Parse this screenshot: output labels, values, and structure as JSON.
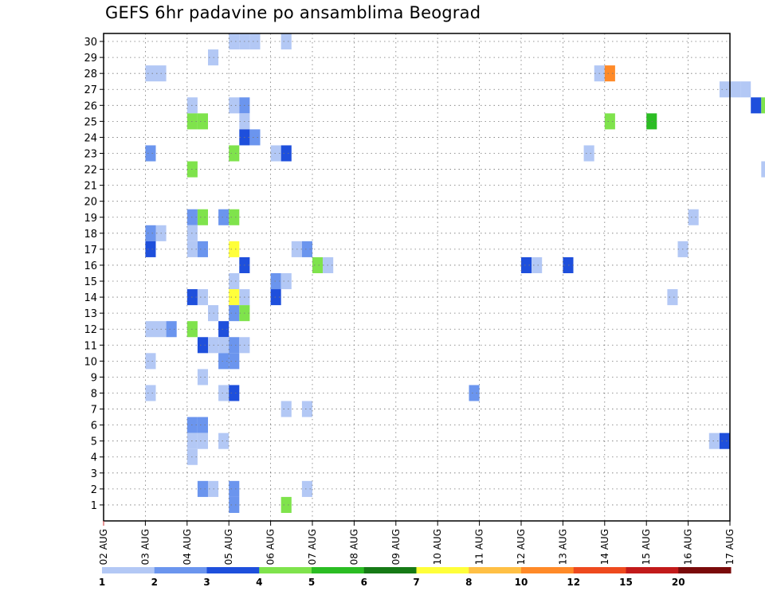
{
  "chart_data": {
    "type": "heatmap",
    "title": "GEFS 6hr padavine po ansamblima Beograd",
    "xlabel": "",
    "ylabel": "",
    "x_start": "02 AUG",
    "x_step_hours": 6,
    "x_tick_labels": [
      "02 AUG",
      "03 AUG",
      "04 AUG",
      "05 AUG",
      "06 AUG",
      "07 AUG",
      "08 AUG",
      "09 AUG",
      "10 AUG",
      "11 AUG",
      "12 AUG",
      "13 AUG",
      "14 AUG",
      "15 AUG",
      "16 AUG",
      "17 AUG"
    ],
    "y_range": [
      1,
      30
    ],
    "y_tick_labels": [
      "1",
      "2",
      "3",
      "4",
      "5",
      "6",
      "7",
      "8",
      "9",
      "10",
      "11",
      "12",
      "13",
      "14",
      "15",
      "16",
      "17",
      "18",
      "19",
      "20",
      "21",
      "22",
      "23",
      "24",
      "25",
      "26",
      "27",
      "28",
      "29",
      "30"
    ],
    "grid": true,
    "colorbar": {
      "position": "bottom",
      "labels": [
        "1",
        "2",
        "3",
        "4",
        "5",
        "6",
        "7",
        "8",
        "10",
        "12",
        "15",
        "20"
      ],
      "colors": [
        "#b3c8f5",
        "#6b95ee",
        "#1e4fdc",
        "#7fe34c",
        "#2bbd23",
        "#167a16",
        "#ffff3a",
        "#ffc045",
        "#ff8a28",
        "#ee4a1e",
        "#c21a1a",
        "#7a0a0a"
      ]
    },
    "cells": [
      {
        "member": 30,
        "time": "05 AUG 00Z",
        "value": 1.5
      },
      {
        "member": 30,
        "time": "05 AUG 06Z",
        "value": 1.5
      },
      {
        "member": 30,
        "time": "05 AUG 12Z",
        "value": 1.5
      },
      {
        "member": 30,
        "time": "06 AUG 06Z",
        "value": 1.5
      },
      {
        "member": 29,
        "time": "04 AUG 12Z",
        "value": 1.5
      },
      {
        "member": 28,
        "time": "03 AUG 00Z",
        "value": 1.5
      },
      {
        "member": 28,
        "time": "03 AUG 06Z",
        "value": 1.5
      },
      {
        "member": 28,
        "time": "13 AUG 18Z",
        "value": 1.5
      },
      {
        "member": 28,
        "time": "14 AUG 00Z",
        "value": 10
      },
      {
        "member": 27,
        "time": "16 AUG 18Z",
        "value": 1.5
      },
      {
        "member": 27,
        "time": "17 AUG 00Z",
        "value": 1.5
      },
      {
        "member": 27,
        "time": "17 AUG 06Z",
        "value": 1.5
      },
      {
        "member": 26,
        "time": "04 AUG 00Z",
        "value": 1.5
      },
      {
        "member": 26,
        "time": "05 AUG 00Z",
        "value": 1.5
      },
      {
        "member": 26,
        "time": "05 AUG 06Z",
        "value": 2.5
      },
      {
        "member": 26,
        "time": "17 AUG 12Z",
        "value": 3.5
      },
      {
        "member": 26,
        "time": "17 AUG 18Z",
        "value": 4.5
      },
      {
        "member": 25,
        "time": "04 AUG 00Z",
        "value": 4.5
      },
      {
        "member": 25,
        "time": "04 AUG 06Z",
        "value": 4.5
      },
      {
        "member": 25,
        "time": "05 AUG 06Z",
        "value": 1.5
      },
      {
        "member": 25,
        "time": "14 AUG 00Z",
        "value": 4.5
      },
      {
        "member": 25,
        "time": "15 AUG 00Z",
        "value": 5.5
      },
      {
        "member": 24,
        "time": "05 AUG 06Z",
        "value": 3.5
      },
      {
        "member": 24,
        "time": "05 AUG 12Z",
        "value": 2.5
      },
      {
        "member": 23,
        "time": "03 AUG 00Z",
        "value": 2.5
      },
      {
        "member": 23,
        "time": "05 AUG 00Z",
        "value": 4.5
      },
      {
        "member": 23,
        "time": "06 AUG 00Z",
        "value": 1.5
      },
      {
        "member": 23,
        "time": "06 AUG 06Z",
        "value": 3.5
      },
      {
        "member": 23,
        "time": "13 AUG 12Z",
        "value": 1.5
      },
      {
        "member": 22,
        "time": "04 AUG 00Z",
        "value": 4.5
      },
      {
        "member": 22,
        "time": "17 AUG 18Z",
        "value": 1.5
      },
      {
        "member": 19,
        "time": "04 AUG 00Z",
        "value": 2.5
      },
      {
        "member": 19,
        "time": "04 AUG 06Z",
        "value": 4.5
      },
      {
        "member": 19,
        "time": "04 AUG 18Z",
        "value": 2.5
      },
      {
        "member": 19,
        "time": "05 AUG 00Z",
        "value": 4.5
      },
      {
        "member": 19,
        "time": "16 AUG 00Z",
        "value": 1.5
      },
      {
        "member": 18,
        "time": "03 AUG 00Z",
        "value": 2.5
      },
      {
        "member": 18,
        "time": "03 AUG 06Z",
        "value": 1.5
      },
      {
        "member": 18,
        "time": "04 AUG 00Z",
        "value": 1.5
      },
      {
        "member": 17,
        "time": "03 AUG 00Z",
        "value": 3.5
      },
      {
        "member": 17,
        "time": "04 AUG 00Z",
        "value": 1.5
      },
      {
        "member": 17,
        "time": "04 AUG 06Z",
        "value": 2.5
      },
      {
        "member": 17,
        "time": "05 AUG 00Z",
        "value": 7.5
      },
      {
        "member": 17,
        "time": "06 AUG 12Z",
        "value": 1.5
      },
      {
        "member": 17,
        "time": "06 AUG 18Z",
        "value": 2.5
      },
      {
        "member": 17,
        "time": "15 AUG 18Z",
        "value": 1.5
      },
      {
        "member": 16,
        "time": "05 AUG 06Z",
        "value": 3.5
      },
      {
        "member": 16,
        "time": "07 AUG 00Z",
        "value": 4.5
      },
      {
        "member": 16,
        "time": "07 AUG 06Z",
        "value": 1.5
      },
      {
        "member": 16,
        "time": "12 AUG 00Z",
        "value": 3.5
      },
      {
        "member": 16,
        "time": "12 AUG 06Z",
        "value": 1.5
      },
      {
        "member": 16,
        "time": "13 AUG 00Z",
        "value": 3.5
      },
      {
        "member": 15,
        "time": "05 AUG 00Z",
        "value": 1.5
      },
      {
        "member": 15,
        "time": "06 AUG 00Z",
        "value": 2.5
      },
      {
        "member": 15,
        "time": "06 AUG 06Z",
        "value": 1.5
      },
      {
        "member": 14,
        "time": "04 AUG 00Z",
        "value": 3.5
      },
      {
        "member": 14,
        "time": "04 AUG 06Z",
        "value": 1.5
      },
      {
        "member": 14,
        "time": "05 AUG 00Z",
        "value": 7.5
      },
      {
        "member": 14,
        "time": "05 AUG 06Z",
        "value": 1.5
      },
      {
        "member": 14,
        "time": "06 AUG 00Z",
        "value": 3.5
      },
      {
        "member": 14,
        "time": "15 AUG 12Z",
        "value": 1.5
      },
      {
        "member": 13,
        "time": "04 AUG 12Z",
        "value": 1.5
      },
      {
        "member": 13,
        "time": "05 AUG 00Z",
        "value": 2.5
      },
      {
        "member": 13,
        "time": "05 AUG 06Z",
        "value": 4.5
      },
      {
        "member": 12,
        "time": "03 AUG 00Z",
        "value": 1.5
      },
      {
        "member": 12,
        "time": "03 AUG 06Z",
        "value": 1.5
      },
      {
        "member": 12,
        "time": "03 AUG 12Z",
        "value": 2.5
      },
      {
        "member": 12,
        "time": "04 AUG 00Z",
        "value": 4.5
      },
      {
        "member": 12,
        "time": "04 AUG 18Z",
        "value": 3.5
      },
      {
        "member": 11,
        "time": "04 AUG 06Z",
        "value": 3.5
      },
      {
        "member": 11,
        "time": "04 AUG 12Z",
        "value": 1.5
      },
      {
        "member": 11,
        "time": "04 AUG 18Z",
        "value": 1.5
      },
      {
        "member": 11,
        "time": "05 AUG 00Z",
        "value": 2.5
      },
      {
        "member": 11,
        "time": "05 AUG 06Z",
        "value": 1.5
      },
      {
        "member": 10,
        "time": "03 AUG 00Z",
        "value": 1.5
      },
      {
        "member": 10,
        "time": "04 AUG 18Z",
        "value": 2.5
      },
      {
        "member": 10,
        "time": "05 AUG 00Z",
        "value": 2.5
      },
      {
        "member": 9,
        "time": "04 AUG 06Z",
        "value": 1.5
      },
      {
        "member": 8,
        "time": "03 AUG 00Z",
        "value": 1.5
      },
      {
        "member": 8,
        "time": "04 AUG 18Z",
        "value": 1.5
      },
      {
        "member": 8,
        "time": "05 AUG 00Z",
        "value": 3.5
      },
      {
        "member": 8,
        "time": "10 AUG 18Z",
        "value": 2.5
      },
      {
        "member": 7,
        "time": "06 AUG 06Z",
        "value": 1.5
      },
      {
        "member": 7,
        "time": "06 AUG 18Z",
        "value": 1.5
      },
      {
        "member": 6,
        "time": "04 AUG 00Z",
        "value": 2.5
      },
      {
        "member": 6,
        "time": "04 AUG 06Z",
        "value": 2.5
      },
      {
        "member": 5,
        "time": "04 AUG 00Z",
        "value": 1.5
      },
      {
        "member": 5,
        "time": "04 AUG 06Z",
        "value": 1.5
      },
      {
        "member": 5,
        "time": "04 AUG 18Z",
        "value": 1.5
      },
      {
        "member": 5,
        "time": "16 AUG 12Z",
        "value": 1.5
      },
      {
        "member": 5,
        "time": "16 AUG 18Z",
        "value": 3.5
      },
      {
        "member": 4,
        "time": "04 AUG 00Z",
        "value": 1.5
      },
      {
        "member": 2,
        "time": "04 AUG 06Z",
        "value": 2.5
      },
      {
        "member": 2,
        "time": "04 AUG 12Z",
        "value": 1.5
      },
      {
        "member": 2,
        "time": "05 AUG 00Z",
        "value": 2.5
      },
      {
        "member": 2,
        "time": "06 AUG 18Z",
        "value": 1.5
      },
      {
        "member": 1,
        "time": "05 AUG 00Z",
        "value": 2.5
      },
      {
        "member": 1,
        "time": "06 AUG 06Z",
        "value": 4.5
      }
    ]
  }
}
